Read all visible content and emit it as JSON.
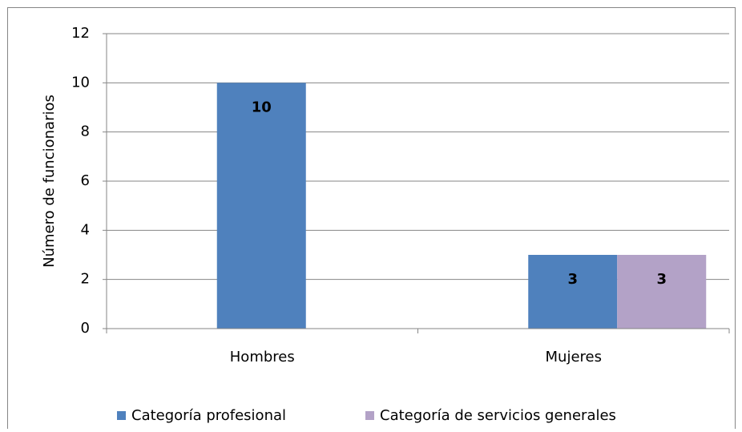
{
  "chart_data": {
    "type": "bar",
    "y_label": "Número de funcionarios",
    "categories": [
      "Hombres",
      "Mujeres"
    ],
    "series": [
      {
        "name": "Categoría profesional",
        "color": "#4f81bd",
        "values": [
          10,
          3
        ]
      },
      {
        "name": "Categoría de servicios generales",
        "color": "#b3a2c7",
        "values": [
          null,
          3
        ]
      }
    ],
    "ylim": [
      0,
      12
    ],
    "yticks": [
      0,
      2,
      4,
      6,
      8,
      10,
      12
    ],
    "grid": true,
    "legend": "bottom"
  }
}
